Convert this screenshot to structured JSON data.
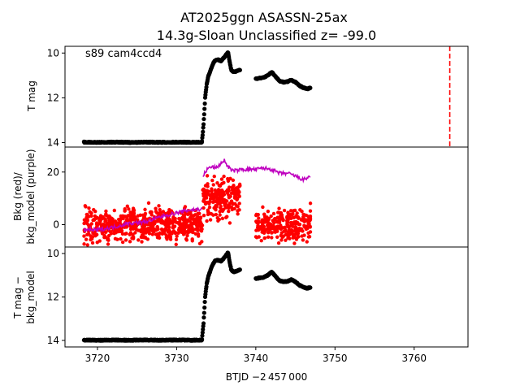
{
  "title_line1": "AT2025ggn  ASASSN-25ax",
  "title_line2": "14.3g-Sloan Unclassified z= -99.0",
  "annotation": "s89 cam4ccd4",
  "xlabel": "BTJD −2 457 000",
  "chart_data": [
    {
      "type": "scatter",
      "panel": "top",
      "ylabel": "T mag",
      "y_inverted": true,
      "xlim": [
        3715.9,
        3766.8
      ],
      "ylim": [
        14.2,
        9.7
      ],
      "yticks": [
        10,
        12,
        14
      ],
      "vline": {
        "x": 3764.5,
        "color": "#ff0000",
        "style": "dashed"
      },
      "series": [
        {
          "color": "#000000",
          "segments": [
            {
              "x": [
                3718.3,
                3720,
                3722,
                3724,
                3726,
                3728,
                3730,
                3732,
                3733.2
              ],
              "y": [
                13.98,
                13.99,
                13.98,
                13.99,
                13.98,
                13.99,
                13.98,
                13.99,
                13.98
              ]
            },
            {
              "x": [
                3733.2,
                3733.4,
                3733.6,
                3733.8,
                3734.0,
                3734.2,
                3734.5,
                3734.8,
                3735.2,
                3735.6,
                3736.0,
                3736.3,
                3736.5,
                3736.7,
                3736.9,
                3737.2,
                3737.6,
                3738.0
              ],
              "y": [
                13.95,
                13.2,
                12.0,
                11.4,
                11.05,
                10.85,
                10.55,
                10.35,
                10.3,
                10.35,
                10.2,
                10.05,
                9.95,
                10.4,
                10.75,
                10.85,
                10.8,
                10.75
              ]
            },
            {
              "x": [
                3740.0,
                3740.5,
                3741.0,
                3741.5,
                3742.0,
                3742.5,
                3743.0,
                3743.5,
                3744.0,
                3744.5,
                3745.0,
                3745.5,
                3746.0,
                3746.5,
                3746.9
              ],
              "y": [
                11.15,
                11.12,
                11.1,
                11.0,
                10.85,
                11.05,
                11.25,
                11.3,
                11.28,
                11.2,
                11.3,
                11.45,
                11.55,
                11.6,
                11.55
              ]
            }
          ]
        }
      ]
    },
    {
      "type": "scatter",
      "panel": "middle",
      "ylabel_line1": "Bkg (red)/",
      "ylabel_line2": "bkg_model (purple)",
      "xlim": [
        3715.9,
        3766.8
      ],
      "ylim": [
        -8.5,
        29.5
      ],
      "yticks": [
        0,
        20
      ],
      "series": [
        {
          "color": "#ff0000",
          "kind": "noisy-points",
          "segments": [
            {
              "x_start": 3718.3,
              "x_end": 3733.3,
              "center": 0,
              "spread": 9
            },
            {
              "x_start": 3733.3,
              "x_end": 3738.0,
              "center": 10,
              "spread": 12
            },
            {
              "x_start": 3740.0,
              "x_end": 3746.9,
              "center": 0,
              "spread": 9
            }
          ]
        },
        {
          "color": "#bf00bf",
          "kind": "line",
          "segments": [
            {
              "x": [
                3718.3,
                3720,
                3722,
                3724,
                3726,
                3728,
                3730,
                3731.5,
                3733.2
              ],
              "y": [
                -2,
                -2,
                -1,
                0.5,
                1,
                3,
                4.5,
                5.5,
                6
              ]
            },
            {
              "x": [
                3733.3,
                3733.6,
                3734.0,
                3734.5,
                3735.0,
                3735.5,
                3736.0,
                3736.5,
                3737.0,
                3737.5,
                3738.0
              ],
              "y": [
                18,
                20,
                21.5,
                22,
                21.5,
                23,
                24.5,
                22,
                20.5,
                20.5,
                21
              ]
            },
            {
              "x": [
                3738.0,
                3740.0,
                3741.0,
                3742.0,
                3743.0,
                3744.0,
                3745.0,
                3746.0,
                3746.9
              ],
              "y": [
                21,
                21,
                21.5,
                21,
                19.5,
                19.5,
                18.5,
                17,
                18.5
              ]
            }
          ]
        }
      ]
    },
    {
      "type": "scatter",
      "panel": "bottom",
      "ylabel_line1": "T mag −",
      "ylabel_line2": "bkg_model",
      "y_inverted": true,
      "xlim": [
        3715.9,
        3766.8
      ],
      "ylim": [
        14.3,
        9.7
      ],
      "yticks": [
        10,
        12,
        14
      ],
      "xticks": [
        3720,
        3730,
        3740,
        3750,
        3760
      ],
      "series": [
        {
          "color": "#000000",
          "segments": [
            {
              "x": [
                3718.3,
                3720,
                3722,
                3724,
                3726,
                3728,
                3730,
                3732,
                3733.2
              ],
              "y": [
                13.98,
                13.99,
                13.98,
                13.99,
                13.98,
                13.99,
                13.98,
                13.99,
                13.98
              ]
            },
            {
              "x": [
                3733.2,
                3733.4,
                3733.6,
                3733.8,
                3734.0,
                3734.2,
                3734.5,
                3734.8,
                3735.2,
                3735.6,
                3736.0,
                3736.3,
                3736.5,
                3736.7,
                3736.9,
                3737.2,
                3737.6,
                3738.0
              ],
              "y": [
                13.95,
                13.2,
                12.0,
                11.4,
                11.05,
                10.85,
                10.55,
                10.35,
                10.3,
                10.35,
                10.2,
                10.05,
                9.95,
                10.4,
                10.75,
                10.85,
                10.8,
                10.75
              ]
            },
            {
              "x": [
                3740.0,
                3740.5,
                3741.0,
                3741.5,
                3742.0,
                3742.5,
                3743.0,
                3743.5,
                3744.0,
                3744.5,
                3745.0,
                3745.5,
                3746.0,
                3746.5,
                3746.9
              ],
              "y": [
                11.15,
                11.12,
                11.1,
                11.0,
                10.85,
                11.05,
                11.25,
                11.3,
                11.28,
                11.2,
                11.3,
                11.45,
                11.55,
                11.6,
                11.55
              ]
            }
          ]
        }
      ]
    }
  ]
}
